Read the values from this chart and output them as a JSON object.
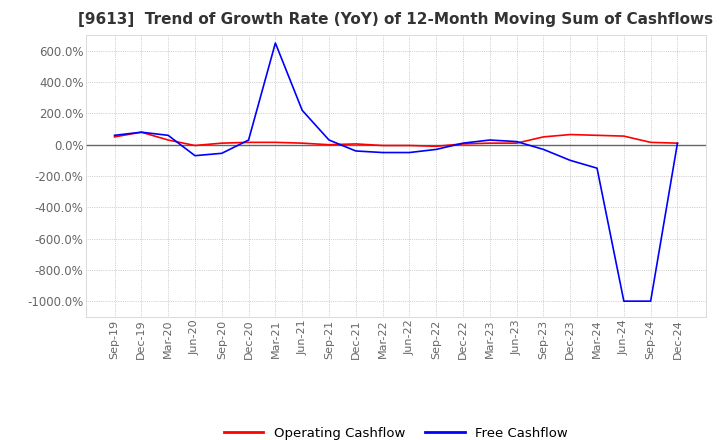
{
  "title": "[9613]  Trend of Growth Rate (YoY) of 12-Month Moving Sum of Cashflows",
  "title_fontsize": 11,
  "ylim": [
    -1100,
    700
  ],
  "yticks": [
    600,
    400,
    200,
    0,
    -200,
    -400,
    -600,
    -800,
    -1000
  ],
  "ytick_labels": [
    "600.0%",
    "400.0%",
    "200.0%",
    "0.0%",
    "-200.0%",
    "-400.0%",
    "-600.0%",
    "-800.0%",
    "-1000.0%"
  ],
  "background_color": "#ffffff",
  "grid_color": "#aaaaaa",
  "operating_color": "#ff0000",
  "free_color": "#0000ff",
  "x_labels": [
    "Sep-19",
    "Dec-19",
    "Mar-20",
    "Jun-20",
    "Sep-20",
    "Dec-20",
    "Mar-21",
    "Jun-21",
    "Sep-21",
    "Dec-21",
    "Mar-22",
    "Jun-22",
    "Sep-22",
    "Dec-22",
    "Mar-23",
    "Jun-23",
    "Sep-23",
    "Dec-23",
    "Mar-24",
    "Jun-24",
    "Sep-24",
    "Dec-24"
  ],
  "operating_cashflow": [
    50,
    80,
    30,
    -5,
    10,
    15,
    15,
    10,
    0,
    5,
    -5,
    -5,
    -10,
    5,
    10,
    10,
    50,
    65,
    60,
    55,
    15,
    10
  ],
  "free_cashflow": [
    60,
    80,
    60,
    -70,
    -55,
    30,
    650,
    220,
    30,
    -40,
    -50,
    -50,
    -30,
    10,
    30,
    20,
    -30,
    -100,
    -150,
    -1000,
    -1000,
    10
  ]
}
